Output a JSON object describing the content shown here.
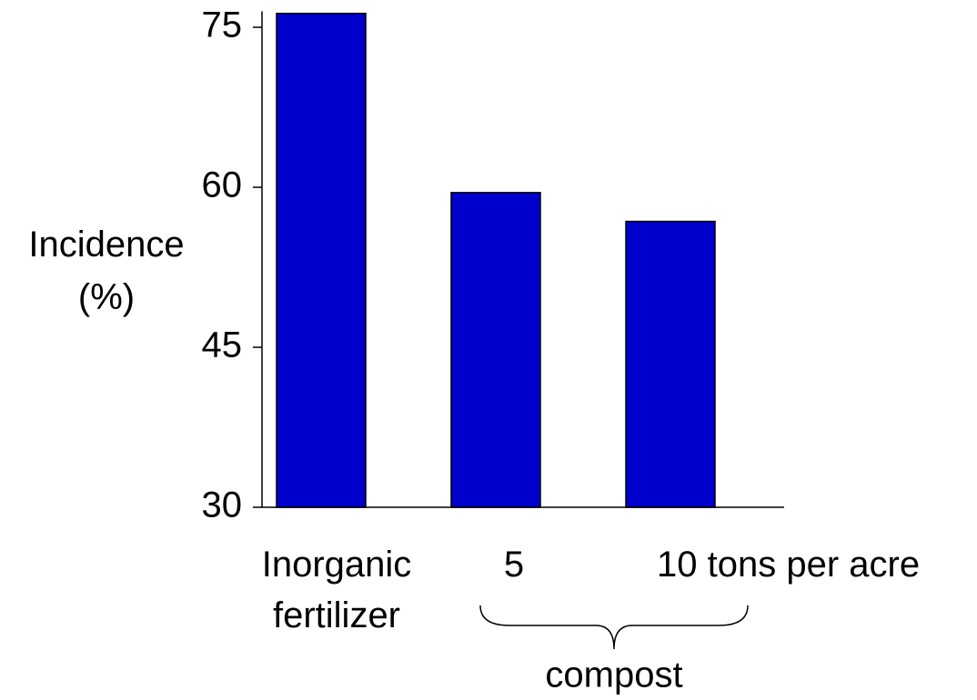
{
  "chart_data": {
    "type": "bar",
    "ylabel": "Incidence (%)",
    "categories": [
      "Inorganic fertilizer",
      "5",
      "10 tons per acre"
    ],
    "values": [
      76.3,
      59.5,
      56.8
    ],
    "color": "#0000cc",
    "ylim": [
      30,
      76.5
    ],
    "yticks": [
      30,
      45,
      60,
      75
    ],
    "annotation": "compost"
  }
}
